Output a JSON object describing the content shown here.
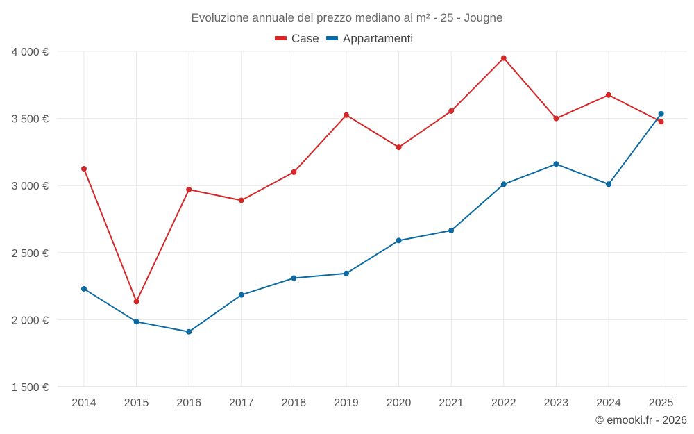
{
  "chart_data": {
    "type": "line",
    "title": "Evoluzione annuale del prezzo mediano al m² - 25 - Jougne",
    "xlabel": "",
    "ylabel": "",
    "categories": [
      "2014",
      "2015",
      "2016",
      "2017",
      "2018",
      "2019",
      "2020",
      "2021",
      "2022",
      "2023",
      "2024",
      "2025"
    ],
    "ylim": [
      1500,
      4000
    ],
    "yticks": [
      1500,
      2000,
      2500,
      3000,
      3500,
      4000
    ],
    "ytick_labels": [
      "1 500 €",
      "2 000 €",
      "2 500 €",
      "3 000 €",
      "3 500 €",
      "4 000 €"
    ],
    "grid": true,
    "legend_position": "top-center",
    "series": [
      {
        "name": "Case",
        "color": "#d62728",
        "values": [
          3125,
          2135,
          2970,
          2890,
          3100,
          3525,
          3285,
          3555,
          3950,
          3500,
          3675,
          3475
        ]
      },
      {
        "name": "Appartamenti",
        "color": "#0b6aa2",
        "values": [
          2230,
          1985,
          1910,
          2185,
          2310,
          2345,
          2590,
          2665,
          3010,
          3160,
          3010,
          3535
        ]
      }
    ]
  },
  "credit": "© emooki.fr - 2026"
}
